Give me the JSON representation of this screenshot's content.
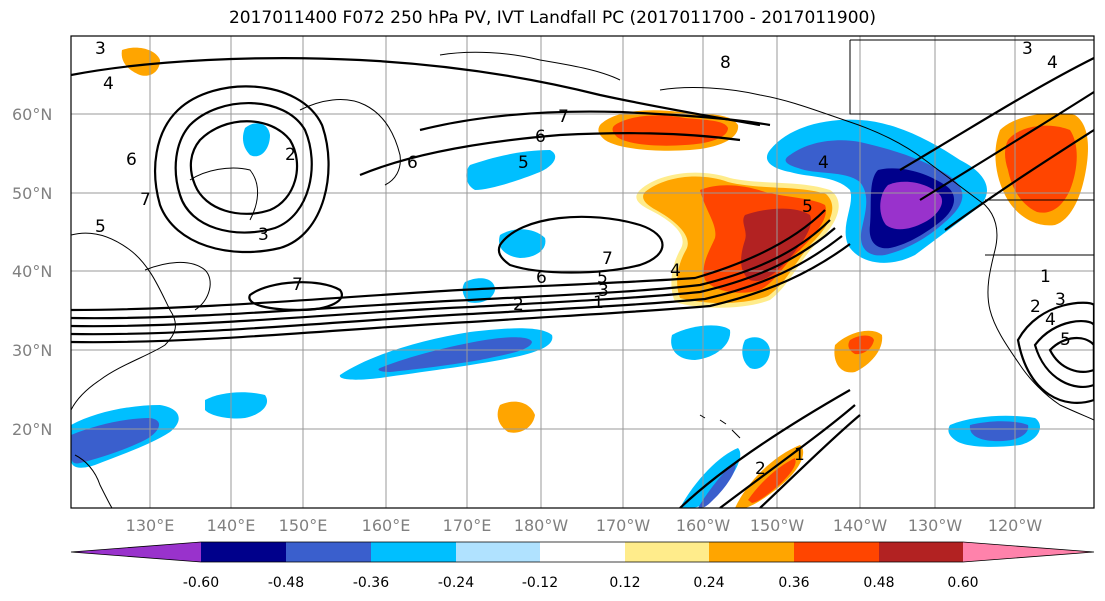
{
  "title": "2017011400 F072 250 hPa PV, IVT Landfall PC (2017011700 - 2017011900)",
  "lat_labels": [
    "60°N",
    "50°N",
    "40°N",
    "30°N",
    "20°N"
  ],
  "lon_labels": [
    "130°E",
    "140°E",
    "150°E",
    "160°E",
    "170°E",
    "180°W",
    "170°W",
    "160°W",
    "150°W",
    "140°W",
    "130°W",
    "120°W"
  ],
  "colorbar": {
    "tick_labels": [
      "-0.60",
      "-0.48",
      "-0.36",
      "-0.24",
      "-0.12",
      "0.12",
      "0.24",
      "0.36",
      "0.48",
      "0.60"
    ],
    "colors": [
      "#9932CC",
      "#00008B",
      "#3A5FCD",
      "#00BFFF",
      "#B0E2FF",
      "#FFFFFF",
      "#FFEC8B",
      "#FFA500",
      "#FF4500",
      "#B22222",
      "#FF82AB"
    ]
  },
  "contour_labels": [
    "3",
    "4",
    "5",
    "6",
    "7",
    "2",
    "3",
    "5",
    "6",
    "7",
    "4",
    "5",
    "7",
    "6",
    "5",
    "4",
    "3",
    "2",
    "1",
    "2",
    "1",
    "1",
    "2",
    "3",
    "4",
    "5",
    "3",
    "4",
    "8",
    "7",
    "6"
  ]
}
